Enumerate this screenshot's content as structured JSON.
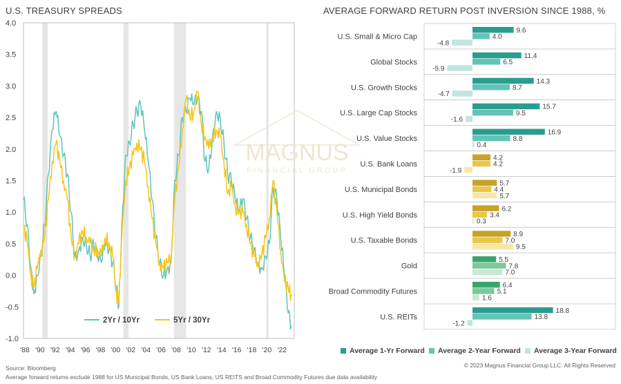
{
  "titles": {
    "left": "U.S. TREASURY SPREADS",
    "right": "AVERAGE FORWARD RETURN POST INVERSION SINCE 1988, %"
  },
  "footer": {
    "source": "Source: Bloomberg",
    "note": "Average forward returns exclude 1988 for US Municipal Bonds, US Bank Loans, US REITS and Broad Commodity Futures due data availability",
    "copyright": "© 2023 Magnus Financial Group LLC. All Rights Reserved"
  },
  "watermark": {
    "name": "MAGNUS",
    "sub": "FINANCIAL GROUP"
  },
  "colors": {
    "teal_dark": "#2a9d8f",
    "teal_mid": "#62c4b8",
    "teal_light": "#bfe6e0",
    "yellow": "#f5c518",
    "gold_dark": "#c9a227",
    "gold_mid": "#e8c84a",
    "gold_light": "#f7e7a6",
    "green_dark": "#3aa56b",
    "green_mid": "#7cc89c",
    "green_light": "#c7e8d4",
    "recession": "#e6e6e6"
  },
  "chart_data": [
    {
      "type": "line",
      "title": "U.S. TREASURY SPREADS",
      "ylim": [
        -1.0,
        4.0
      ],
      "y_ticks": [
        "4.0",
        "3.5",
        "3.0",
        "2.5",
        "2.0",
        "1.5",
        "1.0",
        "0.5",
        "0.0",
        "-0.5",
        "-1.0"
      ],
      "xlim": [
        1988,
        2023.8
      ],
      "x_ticks": [
        "'88",
        "'90",
        "'92",
        "'94",
        "'96",
        "'98",
        "'00",
        "'02",
        "'04",
        "'06",
        "'08",
        "'10",
        "'12",
        "'14",
        "'16",
        "'18",
        "'20",
        "'22"
      ],
      "recessions": [
        [
          1990.5,
          1991.2
        ],
        [
          2001.2,
          2001.9
        ],
        [
          2007.9,
          2009.5
        ],
        [
          2020.1,
          2020.4
        ]
      ],
      "series": [
        {
          "name": "2Yr / 10Yr",
          "color": "#5fc4b8",
          "x": [
            1988,
            1988.5,
            1989,
            1989.4,
            1989.8,
            1990.3,
            1990.8,
            1991.3,
            1991.8,
            1992.3,
            1992.8,
            1993.3,
            1993.8,
            1994.3,
            1994.8,
            1995.3,
            1995.8,
            1996.3,
            1996.8,
            1997.3,
            1997.8,
            1998.3,
            1998.8,
            1999.3,
            1999.8,
            2000.3,
            2000.6,
            2001,
            2001.5,
            2002,
            2002.5,
            2003,
            2003.5,
            2004,
            2004.5,
            2005,
            2005.5,
            2006,
            2006.5,
            2007,
            2007.5,
            2008,
            2008.5,
            2009,
            2009.5,
            2010,
            2010.5,
            2011,
            2011.5,
            2012,
            2012.5,
            2013,
            2013.5,
            2014,
            2014.5,
            2015,
            2015.5,
            2016,
            2016.5,
            2017,
            2017.5,
            2018,
            2018.5,
            2019,
            2019.5,
            2020,
            2020.5,
            2021,
            2021.5,
            2022,
            2022.5,
            2023,
            2023.4
          ],
          "values": [
            1.2,
            0.8,
            0.1,
            -0.3,
            0.0,
            0.3,
            0.8,
            1.6,
            2.3,
            2.6,
            2.2,
            1.9,
            1.6,
            1.0,
            0.3,
            0.4,
            0.6,
            0.5,
            0.3,
            0.5,
            0.3,
            0.2,
            0.5,
            0.4,
            0.2,
            -0.2,
            -0.5,
            0.8,
            1.9,
            2.1,
            2.4,
            2.6,
            2.7,
            2.3,
            1.8,
            1.2,
            0.6,
            0.2,
            0.0,
            0.1,
            0.2,
            1.5,
            1.9,
            2.5,
            2.6,
            2.8,
            2.7,
            2.8,
            2.6,
            1.8,
            1.7,
            2.2,
            2.6,
            2.5,
            2.1,
            1.6,
            1.5,
            1.2,
            1.0,
            1.2,
            0.9,
            0.6,
            0.4,
            0.2,
            0.1,
            0.3,
            0.5,
            1.4,
            1.2,
            0.6,
            0.0,
            -0.6,
            -0.8
          ]
        },
        {
          "name": "5Yr / 30Yr",
          "color": "#f5c518",
          "x": [
            1988,
            1988.5,
            1989,
            1989.4,
            1989.8,
            1990.3,
            1990.8,
            1991.3,
            1991.8,
            1992.3,
            1992.8,
            1993.3,
            1993.8,
            1994.3,
            1994.8,
            1995.3,
            1995.8,
            1996.3,
            1996.8,
            1997.3,
            1997.8,
            1998.3,
            1998.8,
            1999.3,
            1999.8,
            2000.3,
            2000.6,
            2001,
            2001.5,
            2002,
            2002.5,
            2003,
            2003.5,
            2004,
            2004.5,
            2005,
            2005.5,
            2006,
            2006.5,
            2007,
            2007.5,
            2008,
            2008.5,
            2009,
            2009.5,
            2010,
            2010.5,
            2011,
            2011.5,
            2012,
            2012.5,
            2013,
            2013.5,
            2014,
            2014.5,
            2015,
            2015.5,
            2016,
            2016.5,
            2017,
            2017.5,
            2018,
            2018.5,
            2019,
            2019.5,
            2020,
            2020.5,
            2021,
            2021.5,
            2022,
            2022.5,
            2023,
            2023.4
          ],
          "values": [
            0.8,
            0.5,
            0.0,
            -0.2,
            0.1,
            0.4,
            0.6,
            1.2,
            1.8,
            2.1,
            1.8,
            1.5,
            1.2,
            0.6,
            0.3,
            0.5,
            0.7,
            0.6,
            0.5,
            0.4,
            0.4,
            0.3,
            0.6,
            0.5,
            0.3,
            -0.3,
            -0.4,
            0.6,
            1.5,
            1.7,
            1.9,
            2.1,
            2.0,
            1.8,
            1.4,
            0.9,
            0.5,
            0.2,
            0.1,
            0.2,
            0.3,
            1.2,
            1.7,
            2.3,
            2.8,
            2.5,
            2.6,
            2.9,
            2.4,
            2.2,
            2.0,
            2.2,
            2.3,
            2.2,
            1.8,
            1.3,
            1.4,
            1.1,
            1.0,
            1.0,
            0.8,
            0.5,
            0.3,
            0.2,
            0.3,
            0.6,
            0.9,
            1.5,
            1.0,
            0.4,
            -0.1,
            -0.2,
            -0.3
          ]
        }
      ]
    },
    {
      "type": "bar",
      "orientation": "horizontal",
      "title": "AVERAGE FORWARD RETURN POST INVERSION SINCE 1988, %",
      "xlim": [
        -8,
        22
      ],
      "series_names": [
        "Average 1-Yr Forward",
        "Average 2-Year Forward",
        "Average 3-Year Forward"
      ],
      "categories": [
        "U.S. Small & Micro Cap",
        "Global Stocks",
        "U.S. Growth Stocks",
        "U.S. Large Cap Stocks",
        "U.S. Value Stocks",
        "U.S. Bank Loans",
        "U.S. Municipal Bonds",
        "U.S. High Yield Bonds",
        "U.S. Taxable Bonds",
        "Gold",
        "Broad Commodity Futures",
        "U.S. REITs"
      ],
      "category_groups": [
        "teal",
        "teal",
        "teal",
        "teal",
        "teal",
        "gold",
        "gold",
        "gold",
        "gold",
        "green",
        "green",
        "teal"
      ],
      "series": [
        {
          "name": "Average 1-Yr Forward",
          "values": [
            9.6,
            11.4,
            14.3,
            15.7,
            16.9,
            4.2,
            5.7,
            6.2,
            8.9,
            5.5,
            6.4,
            18.8
          ]
        },
        {
          "name": "Average 2-Year Forward",
          "values": [
            4.0,
            6.5,
            8.7,
            9.5,
            8.8,
            4.2,
            4.4,
            3.4,
            7.0,
            7.8,
            5.1,
            13.8
          ]
        },
        {
          "name": "Average 3-Year Forward",
          "values": [
            -4.8,
            -5.9,
            -4.7,
            -1.6,
            0.4,
            -1.9,
            5.7,
            0.3,
            9.5,
            7.0,
            1.6,
            -1.2
          ]
        }
      ],
      "labels": [
        [
          "9.6",
          "4.0",
          "-4.8"
        ],
        [
          "11.4",
          "6.5",
          "-5.9"
        ],
        [
          "14.3",
          "8.7",
          "-4.7"
        ],
        [
          "15.7",
          "9.5",
          "-1.6"
        ],
        [
          "16.9",
          "8.8",
          "0.4"
        ],
        [
          "4.2",
          "4.2",
          "-1.9"
        ],
        [
          "5.7",
          "4.4",
          "5.7"
        ],
        [
          "6.2",
          "3.4",
          "0.3"
        ],
        [
          "8.9",
          "7.0",
          "9.5"
        ],
        [
          "5.5",
          "7.8",
          "7.0"
        ],
        [
          "6.4",
          "5.1",
          "1.6"
        ],
        [
          "18.8",
          "13.8",
          "-1.2"
        ]
      ]
    }
  ]
}
